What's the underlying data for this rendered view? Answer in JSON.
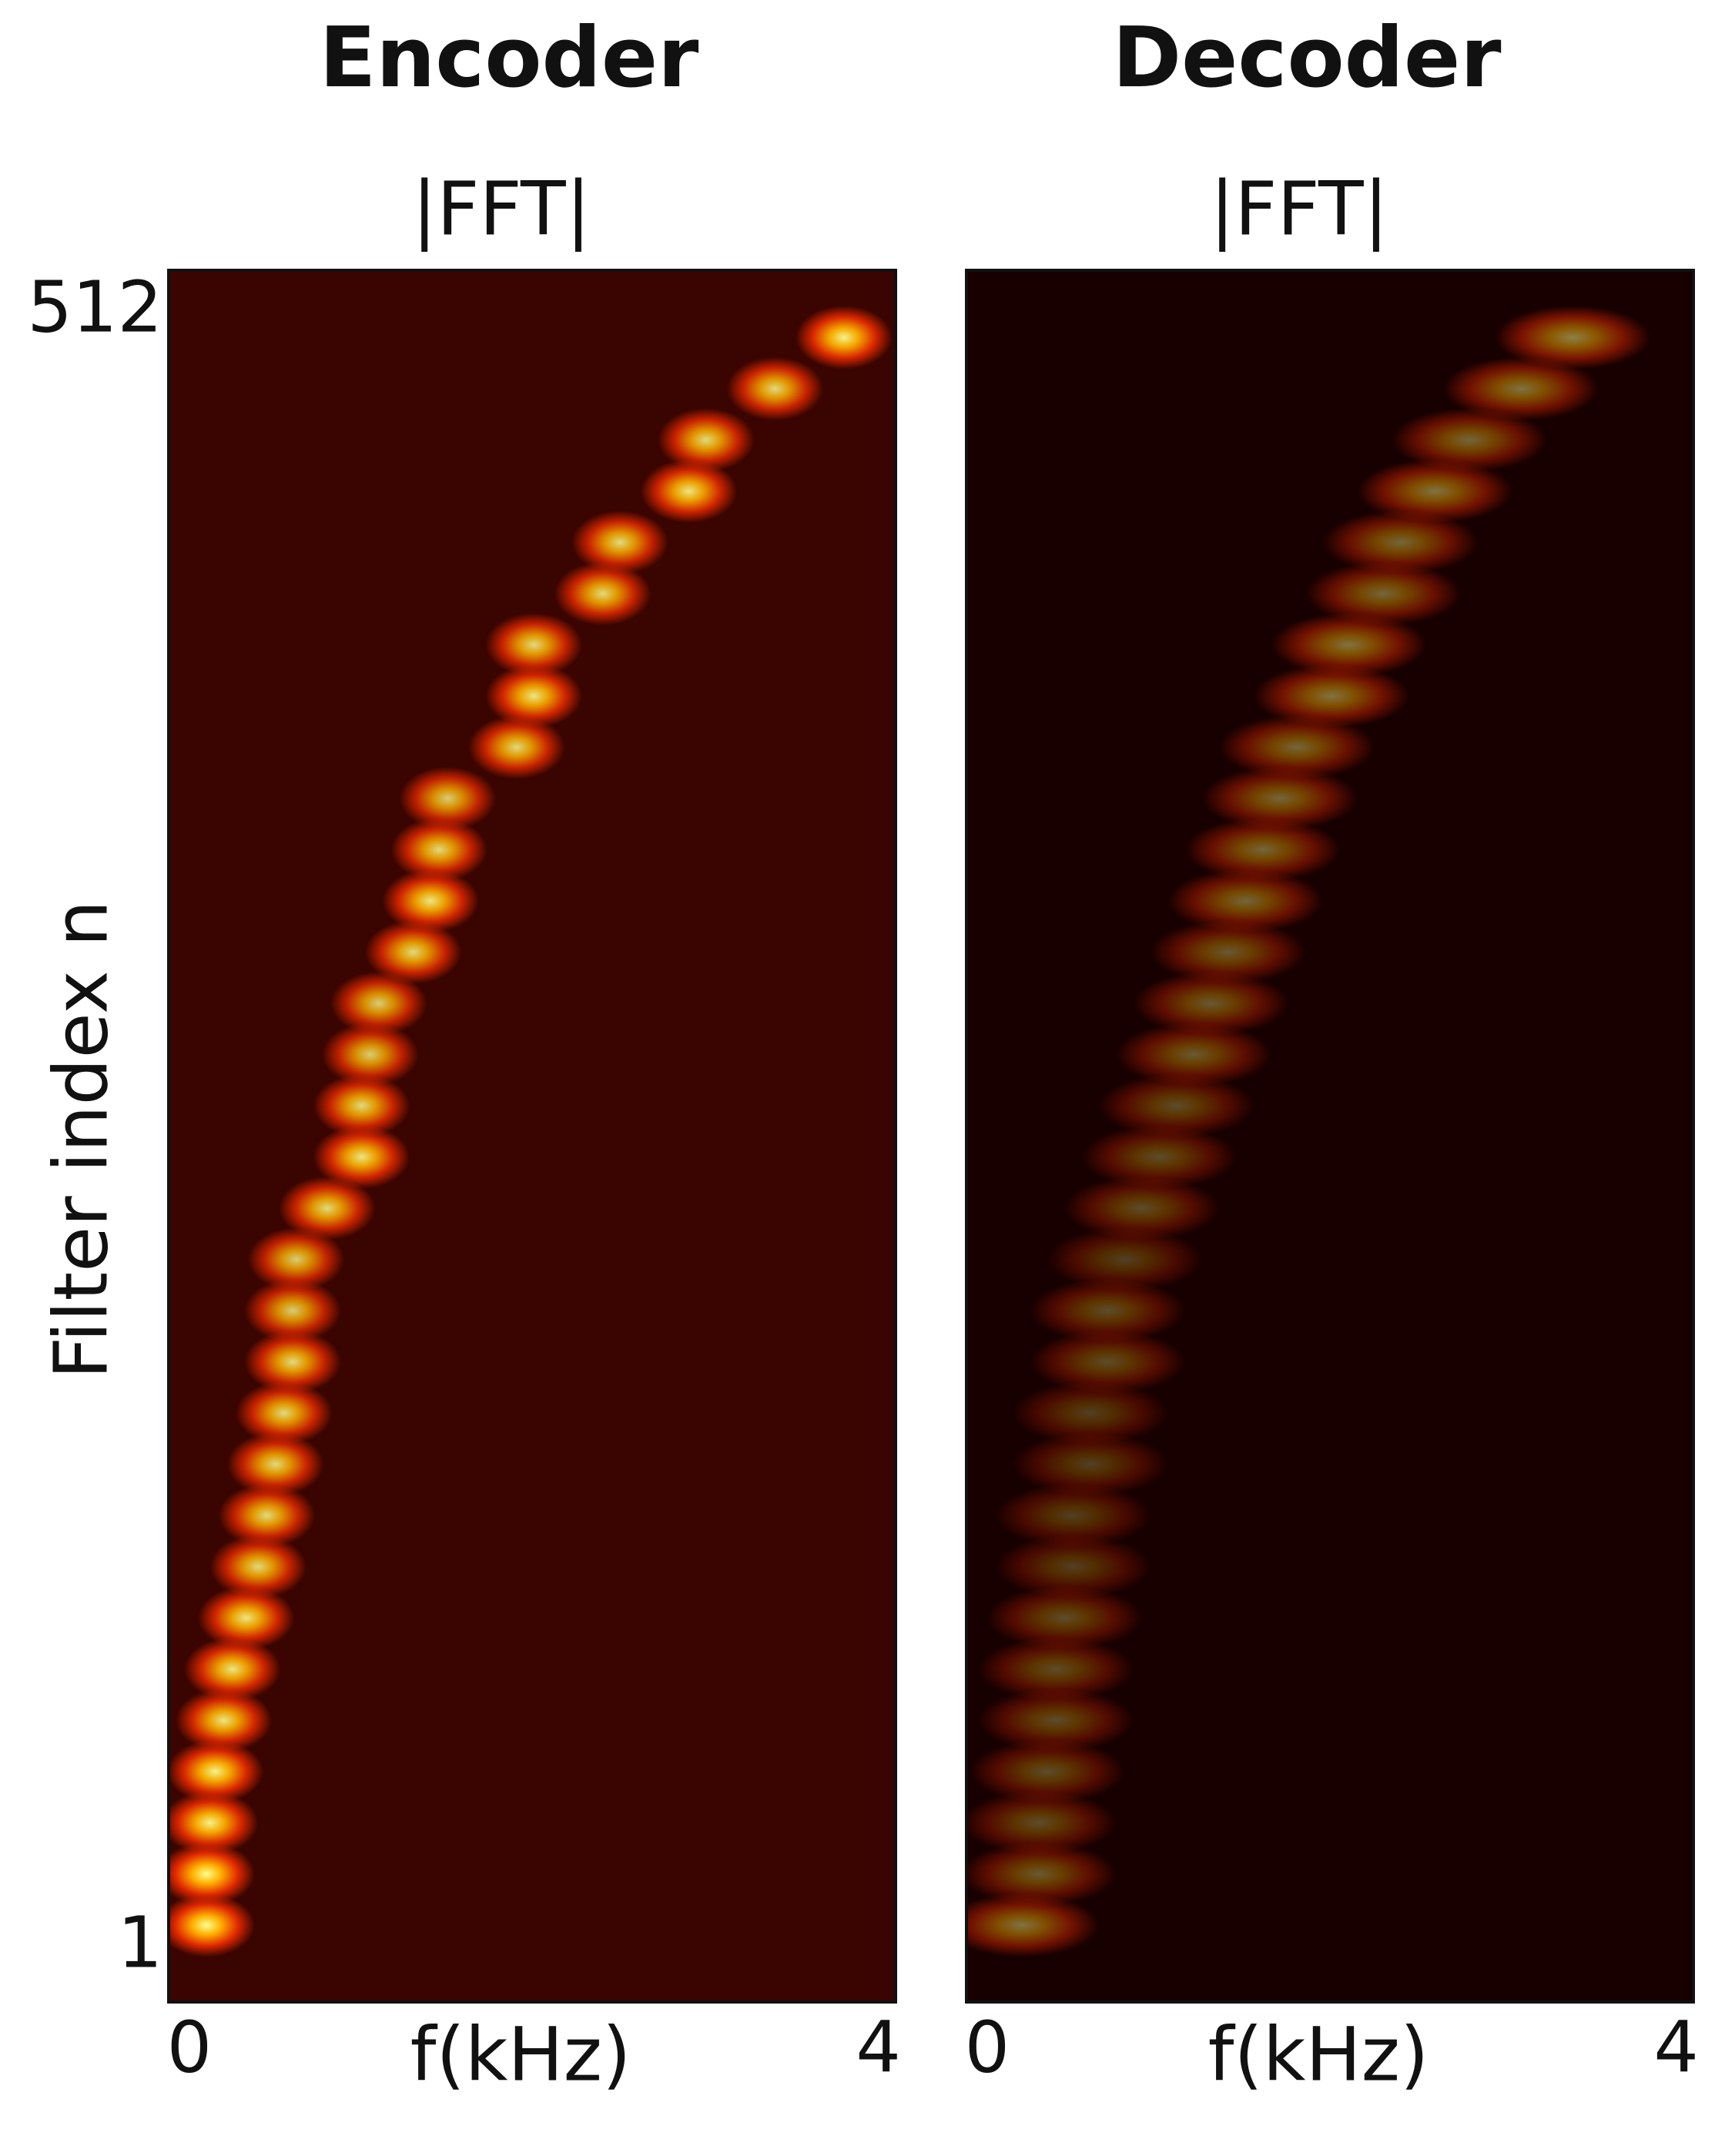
{
  "chart_data": [
    {
      "type": "heatmap",
      "title": "Encoder",
      "subtitle": "|FFT|",
      "x_label": "f(kHz)",
      "y_label": "Filter index n",
      "xlim": [
        -0.12,
        4.1
      ],
      "xticks": [
        0,
        4
      ],
      "ylim": [
        -16,
        525
      ],
      "yticks": [
        512,
        1
      ],
      "background": "#3a0500",
      "spread_khz": 0.28,
      "y": [
        8,
        24,
        40,
        56,
        72,
        88,
        104,
        120,
        136,
        152,
        168,
        184,
        200,
        216,
        232,
        248,
        264,
        280,
        296,
        312,
        328,
        344,
        360,
        376,
        392,
        408,
        424,
        440,
        456,
        472,
        488,
        504
      ],
      "values": [
        0.1,
        0.1,
        0.12,
        0.15,
        0.2,
        0.25,
        0.33,
        0.4,
        0.45,
        0.5,
        0.55,
        0.6,
        0.6,
        0.62,
        0.8,
        1.0,
        1.0,
        1.05,
        1.1,
        1.3,
        1.4,
        1.45,
        1.5,
        1.9,
        2.0,
        2.0,
        2.4,
        2.5,
        2.9,
        3.0,
        3.4,
        3.8
      ],
      "intensity": [
        1.0,
        1.0,
        0.95,
        0.95,
        0.9,
        0.9,
        0.9,
        0.85,
        0.85,
        0.85,
        0.85,
        0.85,
        0.8,
        0.8,
        0.85,
        0.9,
        0.85,
        0.8,
        0.8,
        0.85,
        0.9,
        0.85,
        0.8,
        0.85,
        0.9,
        0.85,
        0.85,
        0.85,
        0.9,
        0.85,
        0.85,
        0.95
      ]
    },
    {
      "type": "heatmap",
      "title": "Decoder",
      "subtitle": "|FFT|",
      "x_label": "f(kHz)",
      "xlim": [
        -0.12,
        4.1
      ],
      "xticks": [
        0,
        4
      ],
      "ylim": [
        -16,
        525
      ],
      "background": "#180000",
      "spread_khz": 0.45,
      "y": [
        8,
        24,
        40,
        56,
        72,
        88,
        104,
        120,
        136,
        152,
        168,
        184,
        200,
        216,
        232,
        248,
        264,
        280,
        296,
        312,
        328,
        344,
        360,
        376,
        392,
        408,
        424,
        440,
        456,
        472,
        488,
        504
      ],
      "values": [
        0.2,
        0.3,
        0.3,
        0.35,
        0.4,
        0.4,
        0.45,
        0.5,
        0.5,
        0.6,
        0.6,
        0.7,
        0.7,
        0.8,
        0.9,
        1.0,
        1.1,
        1.2,
        1.3,
        1.4,
        1.5,
        1.6,
        1.7,
        1.8,
        2.0,
        2.1,
        2.3,
        2.4,
        2.6,
        2.8,
        3.1,
        3.4
      ],
      "intensity": [
        0.45,
        0.35,
        0.3,
        0.3,
        0.3,
        0.3,
        0.3,
        0.25,
        0.25,
        0.25,
        0.25,
        0.3,
        0.3,
        0.25,
        0.3,
        0.3,
        0.3,
        0.35,
        0.35,
        0.35,
        0.4,
        0.4,
        0.4,
        0.4,
        0.45,
        0.45,
        0.4,
        0.4,
        0.45,
        0.4,
        0.45,
        0.5
      ]
    }
  ]
}
